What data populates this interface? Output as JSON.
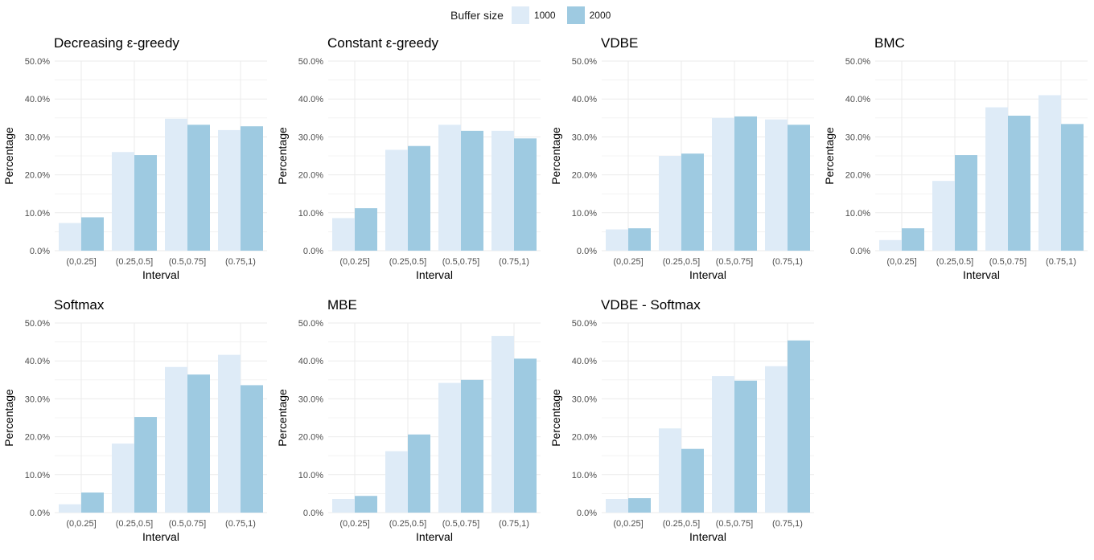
{
  "legend": {
    "title": "Buffer size",
    "entries": [
      "1000",
      "2000"
    ]
  },
  "colors": {
    "s1000": "#deebf7",
    "s2000": "#9ecae1",
    "grid": "#ebebeb",
    "text": "#4d4d4d",
    "title": "#000000"
  },
  "chart_data": [
    {
      "type": "bar",
      "title": "Decreasing ε-greedy",
      "xlabel": "Interval",
      "ylabel": "Percentage",
      "categories": [
        "(0,0.25]",
        "(0.25,0.5]",
        "(0.5,0.75]",
        "(0.75,1)"
      ],
      "yticks": [
        "0.0%",
        "10.0%",
        "20.0%",
        "30.0%",
        "40.0%",
        "50.0%"
      ],
      "ylim": [
        0,
        50
      ],
      "series": [
        {
          "name": "1000",
          "values": [
            7.3,
            26.0,
            34.8,
            31.8
          ]
        },
        {
          "name": "2000",
          "values": [
            8.8,
            25.2,
            33.2,
            32.8
          ]
        }
      ]
    },
    {
      "type": "bar",
      "title": "Constant ε-greedy",
      "xlabel": "Interval",
      "ylabel": "Percentage",
      "categories": [
        "(0,0.25]",
        "(0.25,0.5]",
        "(0.5,0.75]",
        "(0.75,1)"
      ],
      "yticks": [
        "0.0%",
        "10.0%",
        "20.0%",
        "30.0%",
        "40.0%",
        "50.0%"
      ],
      "ylim": [
        0,
        50
      ],
      "series": [
        {
          "name": "1000",
          "values": [
            8.6,
            26.6,
            33.2,
            31.6
          ]
        },
        {
          "name": "2000",
          "values": [
            11.2,
            27.6,
            31.6,
            29.6
          ]
        }
      ]
    },
    {
      "type": "bar",
      "title": "VDBE",
      "xlabel": "Interval",
      "ylabel": "Percentage",
      "categories": [
        "(0,0.25]",
        "(0.25,0.5]",
        "(0.5,0.75]",
        "(0.75,1)"
      ],
      "yticks": [
        "0.0%",
        "10.0%",
        "20.0%",
        "30.0%",
        "40.0%",
        "50.0%"
      ],
      "ylim": [
        0,
        50
      ],
      "series": [
        {
          "name": "1000",
          "values": [
            5.6,
            25.0,
            35.0,
            34.6
          ]
        },
        {
          "name": "2000",
          "values": [
            5.9,
            25.6,
            35.4,
            33.2
          ]
        }
      ]
    },
    {
      "type": "bar",
      "title": "BMC",
      "xlabel": "Interval",
      "ylabel": "Percentage",
      "categories": [
        "(0,0.25]",
        "(0.25,0.5]",
        "(0.5,0.75]",
        "(0.75,1)"
      ],
      "yticks": [
        "0.0%",
        "10.0%",
        "20.0%",
        "30.0%",
        "40.0%",
        "50.0%"
      ],
      "ylim": [
        0,
        50
      ],
      "series": [
        {
          "name": "1000",
          "values": [
            2.8,
            18.4,
            37.8,
            41.0
          ]
        },
        {
          "name": "2000",
          "values": [
            5.9,
            25.2,
            35.6,
            33.4
          ]
        }
      ]
    },
    {
      "type": "bar",
      "title": "Softmax",
      "xlabel": "Interval",
      "ylabel": "Percentage",
      "categories": [
        "(0,0.25]",
        "(0.25,0.5]",
        "(0.5,0.75]",
        "(0.75,1)"
      ],
      "yticks": [
        "0.0%",
        "10.0%",
        "20.0%",
        "30.0%",
        "40.0%",
        "50.0%"
      ],
      "ylim": [
        0,
        50
      ],
      "series": [
        {
          "name": "1000",
          "values": [
            2.2,
            18.2,
            38.4,
            41.6
          ]
        },
        {
          "name": "2000",
          "values": [
            5.3,
            25.2,
            36.4,
            33.6
          ]
        }
      ]
    },
    {
      "type": "bar",
      "title": "MBE",
      "xlabel": "Interval",
      "ylabel": "Percentage",
      "categories": [
        "(0,0.25]",
        "(0.25,0.5]",
        "(0.5,0.75]",
        "(0.75,1)"
      ],
      "yticks": [
        "0.0%",
        "10.0%",
        "20.0%",
        "30.0%",
        "40.0%",
        "50.0%"
      ],
      "ylim": [
        0,
        50
      ],
      "series": [
        {
          "name": "1000",
          "values": [
            3.6,
            16.2,
            34.2,
            46.6
          ]
        },
        {
          "name": "2000",
          "values": [
            4.4,
            20.6,
            35.0,
            40.6
          ]
        }
      ]
    },
    {
      "type": "bar",
      "title": "VDBE - Softmax",
      "xlabel": "Interval",
      "ylabel": "Percentage",
      "categories": [
        "(0,0.25]",
        "(0.25,0.5]",
        "(0.5,0.75]",
        "(0.75,1)"
      ],
      "yticks": [
        "0.0%",
        "10.0%",
        "20.0%",
        "30.0%",
        "40.0%",
        "50.0%"
      ],
      "ylim": [
        0,
        50
      ],
      "series": [
        {
          "name": "1000",
          "values": [
            3.6,
            22.2,
            36.0,
            38.6
          ]
        },
        {
          "name": "2000",
          "values": [
            3.8,
            16.8,
            34.8,
            45.4
          ]
        }
      ]
    }
  ]
}
